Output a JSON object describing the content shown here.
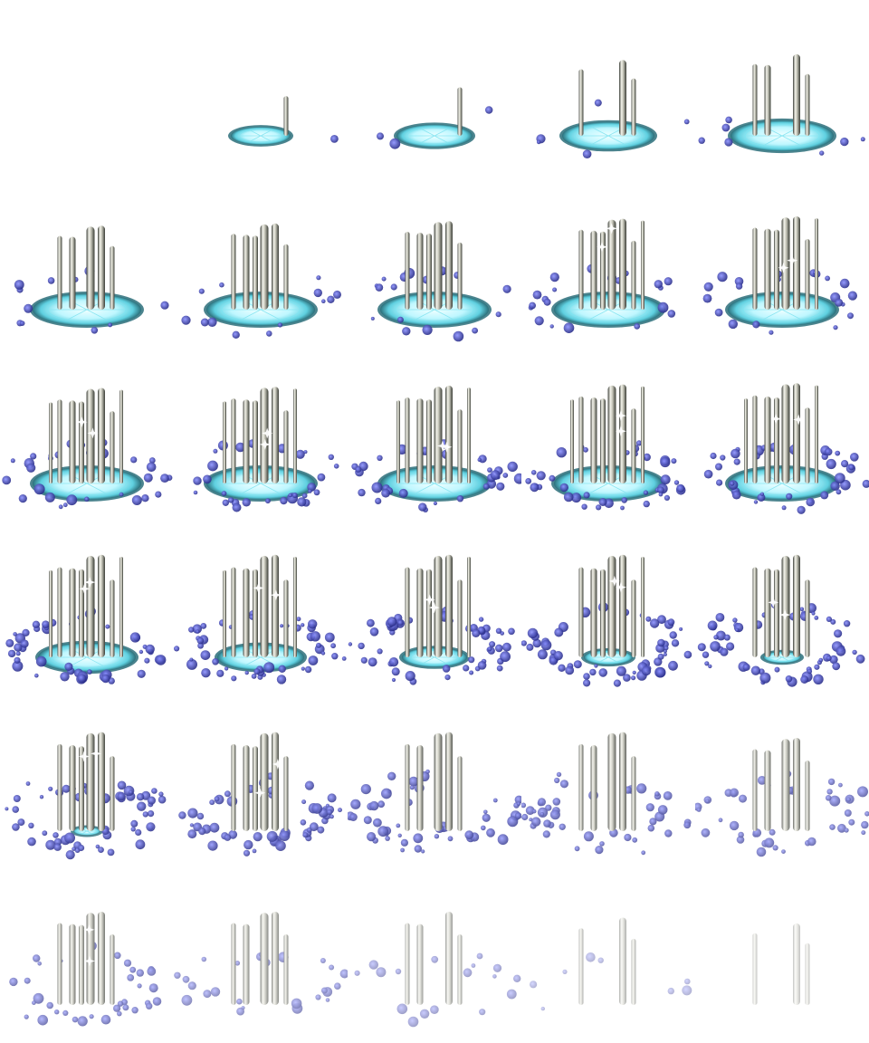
{
  "sprite_sheet": {
    "columns": 5,
    "rows": 6,
    "frame_count": 30,
    "colors": {
      "background": "#ffffff",
      "circle_glow": "#9ef3ff",
      "circle_core": "#f2ffff",
      "circle_rim": "#2b6f7a",
      "pillar_light": "#f2f2ea",
      "pillar_dark": "#3a3d36",
      "orb": "#3b3fb0",
      "orb_light": "#8a90ff",
      "sparkle": "#ffffff"
    },
    "frames": [
      {
        "circle": 0.0,
        "pillars": 0,
        "pillar_height": 0.0,
        "swirl": 0.0,
        "swirl_rise": 0.0,
        "fade": 1.0
      },
      {
        "circle": 0.55,
        "pillars": 1,
        "pillar_height": 0.45,
        "swirl": 0.02,
        "swirl_rise": 0.0,
        "fade": 1.0
      },
      {
        "circle": 0.7,
        "pillars": 1,
        "pillar_height": 0.55,
        "swirl": 0.05,
        "swirl_rise": 0.0,
        "fade": 1.0
      },
      {
        "circle": 0.85,
        "pillars": 3,
        "pillar_height": 0.65,
        "swirl": 0.08,
        "swirl_rise": 0.0,
        "fade": 1.0
      },
      {
        "circle": 0.95,
        "pillars": 4,
        "pillar_height": 0.7,
        "swirl": 0.12,
        "swirl_rise": 0.0,
        "fade": 1.0
      },
      {
        "circle": 1.0,
        "pillars": 5,
        "pillar_height": 0.72,
        "swirl": 0.18,
        "swirl_rise": 0.0,
        "fade": 1.0
      },
      {
        "circle": 1.0,
        "pillars": 6,
        "pillar_height": 0.74,
        "swirl": 0.22,
        "swirl_rise": 0.0,
        "fade": 1.0
      },
      {
        "circle": 1.0,
        "pillars": 6,
        "pillar_height": 0.76,
        "swirl": 0.28,
        "swirl_rise": 0.0,
        "fade": 1.0
      },
      {
        "circle": 1.0,
        "pillars": 7,
        "pillar_height": 0.78,
        "swirl": 0.33,
        "swirl_rise": 0.0,
        "fade": 1.0
      },
      {
        "circle": 1.0,
        "pillars": 7,
        "pillar_height": 0.8,
        "swirl": 0.38,
        "swirl_rise": 0.0,
        "fade": 1.0
      },
      {
        "circle": 1.0,
        "pillars": 8,
        "pillar_height": 0.82,
        "swirl": 0.5,
        "swirl_rise": 0.0,
        "fade": 1.0
      },
      {
        "circle": 1.0,
        "pillars": 8,
        "pillar_height": 0.83,
        "swirl": 0.55,
        "swirl_rise": 0.0,
        "fade": 1.0
      },
      {
        "circle": 1.0,
        "pillars": 8,
        "pillar_height": 0.84,
        "swirl": 0.6,
        "swirl_rise": 0.02,
        "fade": 1.0
      },
      {
        "circle": 1.0,
        "pillars": 8,
        "pillar_height": 0.85,
        "swirl": 0.66,
        "swirl_rise": 0.04,
        "fade": 1.0
      },
      {
        "circle": 1.0,
        "pillars": 8,
        "pillar_height": 0.86,
        "swirl": 0.72,
        "swirl_rise": 0.06,
        "fade": 1.0
      },
      {
        "circle": 0.9,
        "pillars": 8,
        "pillar_height": 0.88,
        "swirl": 0.8,
        "swirl_rise": 0.08,
        "fade": 1.0
      },
      {
        "circle": 0.8,
        "pillars": 8,
        "pillar_height": 0.88,
        "swirl": 0.85,
        "swirl_rise": 0.1,
        "fade": 1.0
      },
      {
        "circle": 0.6,
        "pillars": 7,
        "pillar_height": 0.88,
        "swirl": 0.9,
        "swirl_rise": 0.14,
        "fade": 1.0
      },
      {
        "circle": 0.45,
        "pillars": 7,
        "pillar_height": 0.88,
        "swirl": 0.95,
        "swirl_rise": 0.18,
        "fade": 1.0
      },
      {
        "circle": 0.35,
        "pillars": 6,
        "pillar_height": 0.88,
        "swirl": 1.0,
        "swirl_rise": 0.22,
        "fade": 1.0
      },
      {
        "circle": 0.25,
        "pillars": 6,
        "pillar_height": 0.85,
        "swirl": 1.0,
        "swirl_rise": 0.3,
        "fade": 0.95
      },
      {
        "circle": 0.0,
        "pillars": 6,
        "pillar_height": 0.85,
        "swirl": 0.95,
        "swirl_rise": 0.36,
        "fade": 0.9
      },
      {
        "circle": 0.0,
        "pillars": 5,
        "pillar_height": 0.85,
        "swirl": 0.85,
        "swirl_rise": 0.4,
        "fade": 0.85
      },
      {
        "circle": 0.0,
        "pillars": 5,
        "pillar_height": 0.85,
        "swirl": 0.8,
        "swirl_rise": 0.42,
        "fade": 0.8
      },
      {
        "circle": 0.0,
        "pillars": 5,
        "pillar_height": 0.8,
        "swirl": 0.75,
        "swirl_rise": 0.45,
        "fade": 0.75
      },
      {
        "circle": 0.0,
        "pillars": 6,
        "pillar_height": 0.8,
        "swirl": 0.6,
        "swirl_rise": 0.4,
        "fade": 0.7
      },
      {
        "circle": 0.0,
        "pillars": 5,
        "pillar_height": 0.8,
        "swirl": 0.45,
        "swirl_rise": 0.4,
        "fade": 0.6
      },
      {
        "circle": 0.0,
        "pillars": 4,
        "pillar_height": 0.8,
        "swirl": 0.3,
        "swirl_rise": 0.4,
        "fade": 0.5
      },
      {
        "circle": 0.0,
        "pillars": 3,
        "pillar_height": 0.75,
        "swirl": 0.15,
        "swirl_rise": 0.4,
        "fade": 0.4
      },
      {
        "circle": 0.0,
        "pillars": 3,
        "pillar_height": 0.7,
        "swirl": 0.0,
        "swirl_rise": 0.4,
        "fade": 0.3
      }
    ]
  }
}
